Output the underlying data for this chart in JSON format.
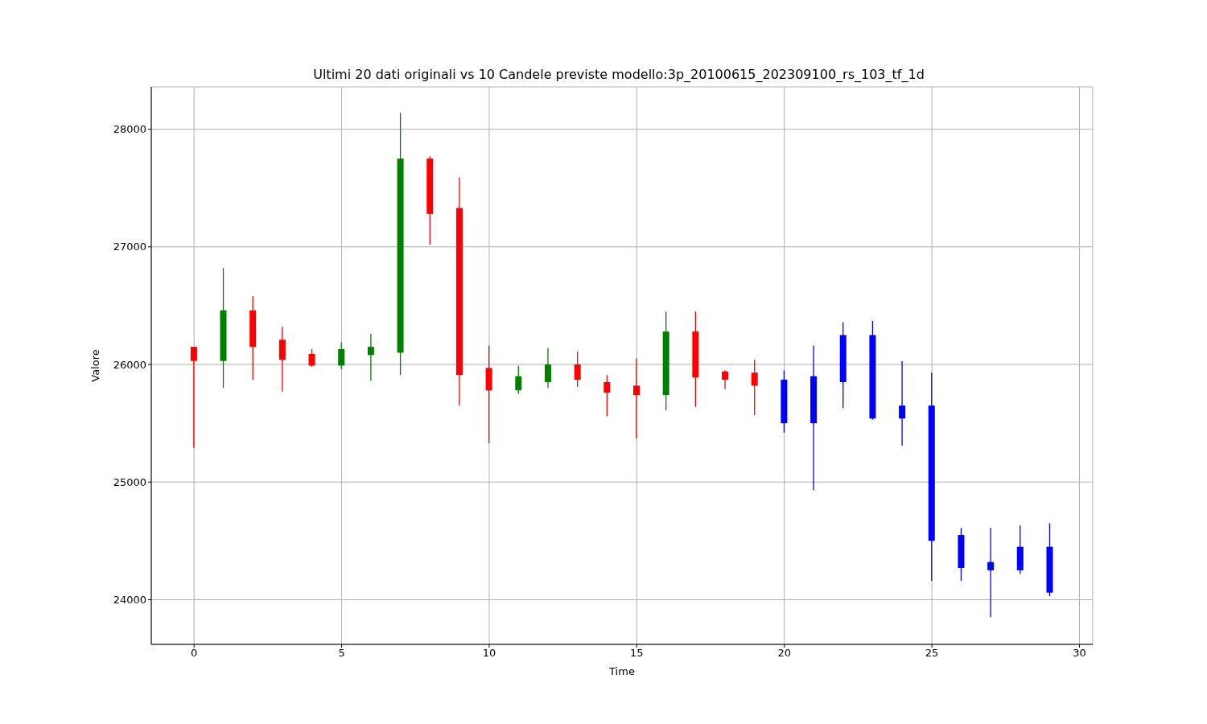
{
  "chart_data": {
    "type": "candlestick",
    "title": "Ultimi 20 dati originali vs 10 Candele previste modello:3p_20100615_202309100_rs_103_tf_1d",
    "xlabel": "Time",
    "ylabel": "Valore",
    "xlim": [
      -1.45,
      30.45
    ],
    "xticks": [
      0,
      5,
      10,
      15,
      20,
      25,
      30
    ],
    "ylim": [
      23620,
      28360
    ],
    "yticks": [
      24000,
      25000,
      26000,
      27000,
      28000
    ],
    "grid": true,
    "series": [
      {
        "x": [
          0,
          1,
          2,
          3,
          4,
          5,
          6,
          7,
          8,
          9,
          10,
          11,
          12,
          13,
          14,
          15,
          16,
          17,
          18,
          19
        ],
        "colors": [
          "#ff0000",
          "#008000",
          "#ff0000",
          "#ff0000",
          "#ff0000",
          "#008000",
          "#008000",
          "#008000",
          "#ff0000",
          "#ff0000",
          "#ff0000",
          "#008000",
          "#008000",
          "#ff0000",
          "#ff0000",
          "#ff0000",
          "#008000",
          "#ff0000",
          "#ff0000",
          "#ff0000"
        ],
        "ohlc": [
          [
            26150,
            26150,
            25290,
            26030
          ],
          [
            26030,
            26820,
            25800,
            26460
          ],
          [
            26460,
            26580,
            25870,
            26150
          ],
          [
            26210,
            26320,
            25770,
            26040
          ],
          [
            26090,
            26130,
            25980,
            25990
          ],
          [
            25990,
            26190,
            25960,
            26130
          ],
          [
            26080,
            26260,
            25860,
            26150
          ],
          [
            26100,
            28140,
            25910,
            27750
          ],
          [
            27750,
            27770,
            27020,
            27280
          ],
          [
            27330,
            27590,
            25650,
            25910
          ],
          [
            25970,
            26160,
            25330,
            25780
          ],
          [
            25780,
            25990,
            25750,
            25900
          ],
          [
            25850,
            26140,
            25800,
            26000
          ],
          [
            26000,
            26110,
            25810,
            25870
          ],
          [
            25850,
            25910,
            25560,
            25760
          ],
          [
            25820,
            26050,
            25370,
            25740
          ],
          [
            25740,
            26450,
            25610,
            26280
          ],
          [
            26280,
            26450,
            25640,
            25890
          ],
          [
            25940,
            25950,
            25790,
            25870
          ],
          [
            25930,
            26040,
            25570,
            25820
          ]
        ]
      },
      {
        "x": [
          20,
          21,
          22,
          23,
          24,
          25,
          26,
          27,
          28,
          29
        ],
        "color": "#0000ff",
        "ohlc": [
          [
            25870,
            25950,
            25420,
            25500
          ],
          [
            25900,
            26160,
            24930,
            25500
          ],
          [
            26250,
            26360,
            25630,
            25850
          ],
          [
            26250,
            26370,
            25530,
            25540
          ],
          [
            25650,
            26030,
            25310,
            25540
          ],
          [
            25650,
            25930,
            24160,
            24500
          ],
          [
            24550,
            24610,
            24160,
            24270
          ],
          [
            24320,
            24610,
            23850,
            24250
          ],
          [
            24450,
            24630,
            24220,
            24250
          ],
          [
            24450,
            24650,
            24030,
            24060
          ]
        ]
      }
    ]
  }
}
